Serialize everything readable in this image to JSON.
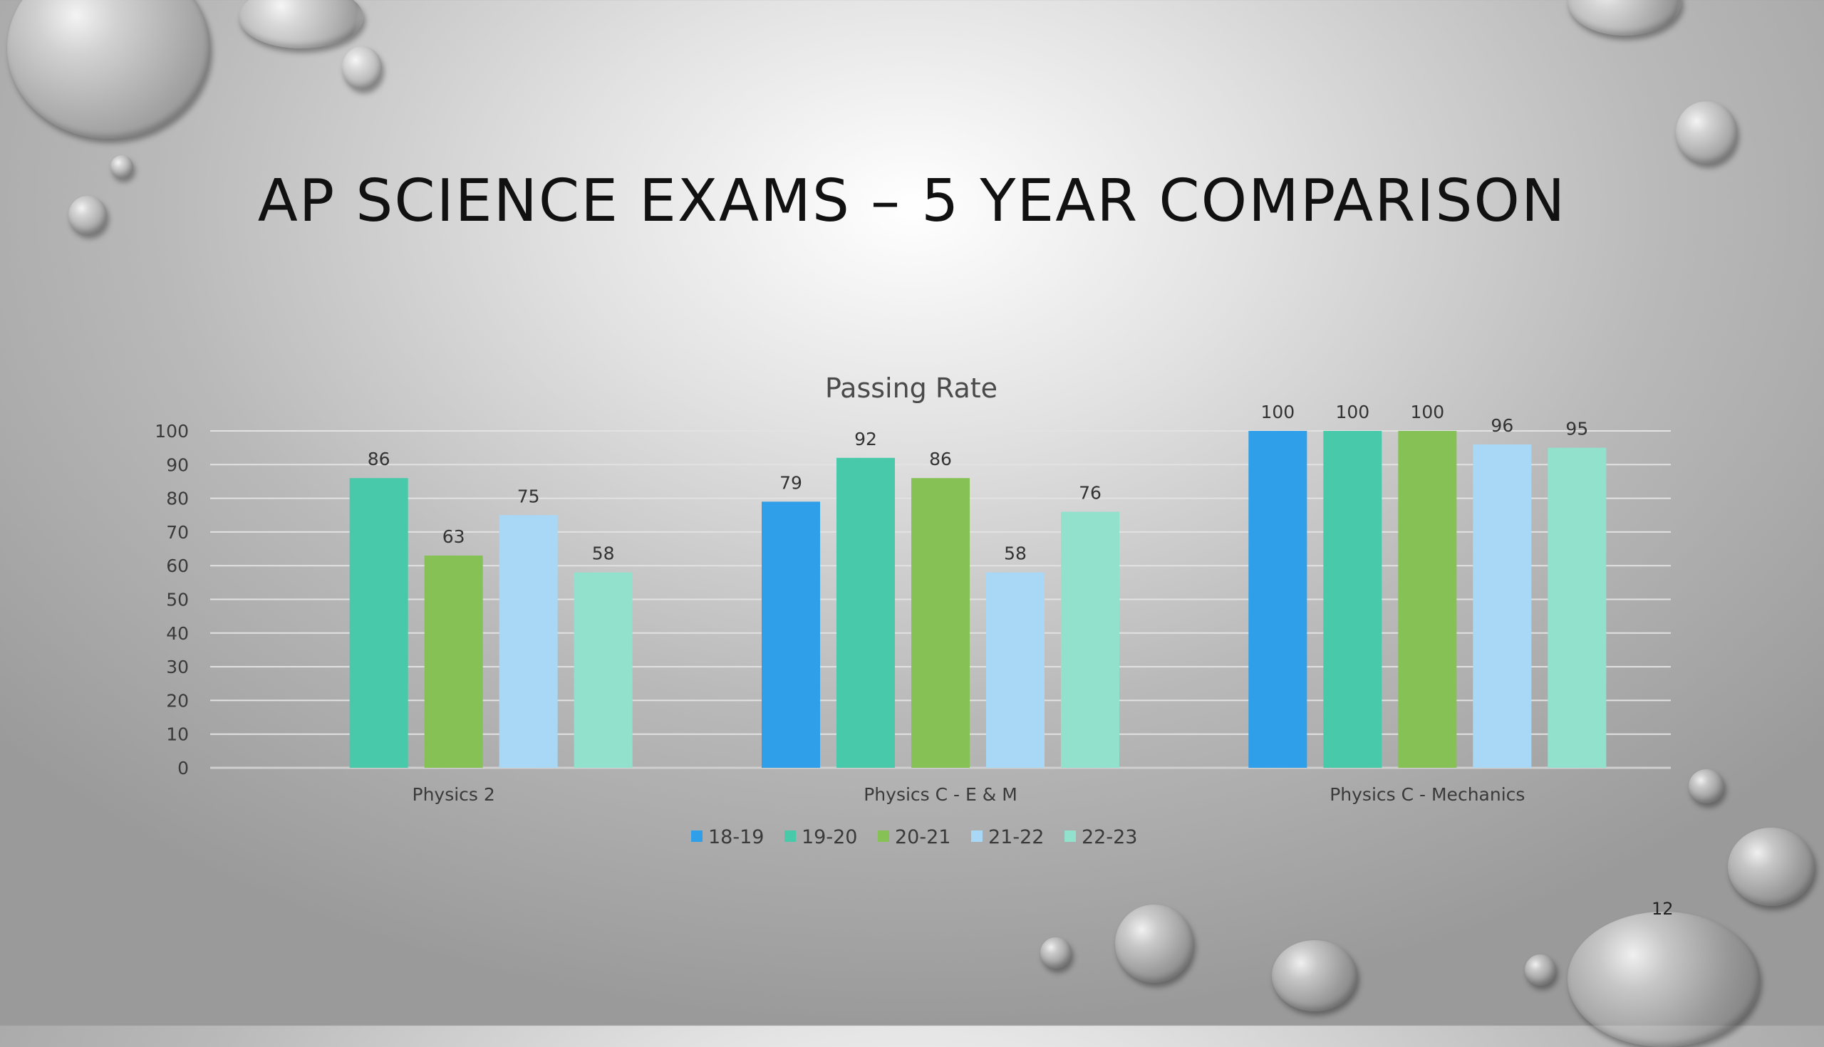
{
  "slide": {
    "title": "AP SCIENCE EXAMS – 5 YEAR COMPARISON",
    "page_number": "12"
  },
  "chart_data": {
    "type": "bar",
    "title": "Passing Rate",
    "categories": [
      "Physics 2",
      "Physics C - E & M",
      "Physics C - Mechanics"
    ],
    "series": [
      {
        "name": "18-19",
        "color": "#2f9fe9",
        "values": [
          null,
          79,
          100
        ]
      },
      {
        "name": "19-20",
        "color": "#48c9a9",
        "values": [
          86,
          92,
          100
        ]
      },
      {
        "name": "20-21",
        "color": "#86c155",
        "values": [
          63,
          86,
          100
        ]
      },
      {
        "name": "21-22",
        "color": "#a9d8f7",
        "values": [
          75,
          58,
          96
        ]
      },
      {
        "name": "22-23",
        "color": "#92e1cd",
        "values": [
          58,
          76,
          95
        ]
      }
    ],
    "ylim": [
      0,
      100
    ],
    "yticks": [
      0,
      10,
      20,
      30,
      40,
      50,
      60,
      70,
      80,
      90,
      100
    ],
    "grid": true,
    "legend": "bottom",
    "data_labels": true,
    "xlabel": "",
    "ylabel": ""
  }
}
